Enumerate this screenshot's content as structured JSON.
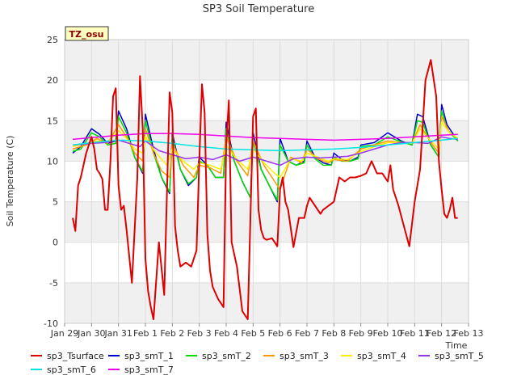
{
  "chart_data": {
    "type": "line",
    "title": "SP3 Soil Temperature",
    "xlabel": "Time",
    "ylabel": "Soil Temperature (C)",
    "badge": "TZ_osu",
    "ylim": [
      -10,
      25
    ],
    "xlim": [
      0,
      15
    ],
    "yticks": [
      -10,
      -5,
      0,
      5,
      10,
      15,
      20,
      25
    ],
    "xticks": [
      {
        "v": 0,
        "label": "Jan 29"
      },
      {
        "v": 1,
        "label": "Jan 30"
      },
      {
        "v": 2,
        "label": "Jan 31"
      },
      {
        "v": 3,
        "label": "Feb 1"
      },
      {
        "v": 4,
        "label": "Feb 2"
      },
      {
        "v": 5,
        "label": "Feb 3"
      },
      {
        "v": 6,
        "label": "Feb 4"
      },
      {
        "v": 7,
        "label": "Feb 5"
      },
      {
        "v": 8,
        "label": "Feb 6"
      },
      {
        "v": 9,
        "label": "Feb 7"
      },
      {
        "v": 10,
        "label": "Feb 8"
      },
      {
        "v": 11,
        "label": "Feb 9"
      },
      {
        "v": 12,
        "label": "Feb 10"
      },
      {
        "v": 13,
        "label": "Feb 11"
      },
      {
        "v": 14,
        "label": "Feb 12"
      },
      {
        "v": 15,
        "label": "Feb 13"
      }
    ],
    "grid": true,
    "legend_position": "bottom",
    "series": [
      {
        "name": "sp3_Tsurface",
        "color": "#dd0000",
        "width": 2,
        "x": [
          0.3,
          0.4,
          0.5,
          0.6,
          0.8,
          1.0,
          1.1,
          1.2,
          1.3,
          1.4,
          1.5,
          1.6,
          1.7,
          1.8,
          1.9,
          2.0,
          2.1,
          2.2,
          2.3,
          2.5,
          2.7,
          2.8,
          2.9,
          3.0,
          3.1,
          3.2,
          3.3,
          3.5,
          3.7,
          3.9,
          4.0,
          4.1,
          4.2,
          4.3,
          4.5,
          4.7,
          4.9,
          5.0,
          5.1,
          5.2,
          5.3,
          5.4,
          5.5,
          5.7,
          5.9,
          6.0,
          6.1,
          6.2,
          6.4,
          6.6,
          6.8,
          7.0,
          7.1,
          7.2,
          7.3,
          7.4,
          7.5,
          7.7,
          7.9,
          8.0,
          8.1,
          8.2,
          8.3,
          8.5,
          8.7,
          8.9,
          9.0,
          9.1,
          9.3,
          9.5,
          9.6,
          9.8,
          10.0,
          10.2,
          10.4,
          10.6,
          10.8,
          11.0,
          11.2,
          11.4,
          11.6,
          11.8,
          12.0,
          12.1,
          12.2,
          12.4,
          12.6,
          12.8,
          13.0,
          13.2,
          13.4,
          13.6,
          13.8,
          13.9,
          14.0,
          14.1,
          14.2,
          14.3,
          14.4,
          14.5,
          14.6
        ],
        "y": [
          3.0,
          1.4,
          7.0,
          8.0,
          11.0,
          13.0,
          11.5,
          9.0,
          8.5,
          7.8,
          4.0,
          4.0,
          10.0,
          18.0,
          19.0,
          7.0,
          4.0,
          4.5,
          1.5,
          -5.0,
          8.0,
          20.5,
          14.0,
          -2.0,
          -6.0,
          -8.0,
          -9.5,
          0.0,
          -6.5,
          18.5,
          16.0,
          2.0,
          -1.0,
          -3.0,
          -2.5,
          -3.0,
          -1.0,
          10.0,
          19.5,
          16.0,
          1.0,
          -3.5,
          -5.5,
          -7.0,
          -8.0,
          12.0,
          17.5,
          0.0,
          -3.0,
          -8.5,
          -9.5,
          15.5,
          16.5,
          4.0,
          1.5,
          0.5,
          0.3,
          0.5,
          -0.5,
          6.5,
          8.0,
          5.0,
          4.0,
          -0.6,
          3.0,
          3.0,
          4.5,
          5.5,
          4.5,
          3.5,
          4.0,
          4.5,
          5.0,
          8.0,
          7.5,
          8.0,
          8.0,
          8.2,
          8.5,
          10.0,
          8.5,
          8.5,
          7.5,
          9.5,
          6.5,
          4.5,
          2.0,
          -0.5,
          5.0,
          9.0,
          20.0,
          22.5,
          18.0,
          10.0,
          6.5,
          3.5,
          3.0,
          4.0,
          5.5,
          3.0,
          3.0
        ]
      },
      {
        "name": "sp3_smT_1",
        "color": "#0000cc",
        "width": 1.5,
        "x": [
          0.3,
          0.6,
          1.0,
          1.3,
          1.6,
          1.9,
          2.0,
          2.3,
          2.6,
          2.9,
          3.0,
          3.3,
          3.6,
          3.9,
          4.0,
          4.3,
          4.6,
          4.9,
          5.0,
          5.3,
          5.6,
          5.9,
          6.0,
          6.3,
          6.6,
          6.9,
          7.0,
          7.3,
          7.6,
          7.9,
          8.0,
          8.3,
          8.6,
          8.9,
          9.0,
          9.3,
          9.6,
          9.9,
          10.0,
          10.3,
          10.6,
          10.9,
          11.0,
          11.5,
          12.0,
          12.5,
          12.9,
          13.1,
          13.3,
          13.6,
          13.9,
          14.0,
          14.2,
          14.4,
          14.6
        ],
        "y": [
          11.0,
          11.8,
          14.0,
          13.3,
          12.2,
          12.5,
          16.2,
          14.0,
          10.5,
          8.5,
          15.8,
          11.5,
          8.0,
          6.0,
          13.5,
          9.0,
          7.0,
          8.0,
          10.5,
          9.5,
          8.0,
          8.0,
          14.8,
          10.0,
          7.5,
          5.5,
          13.5,
          9.0,
          7.0,
          5.0,
          12.8,
          10.0,
          9.5,
          10.0,
          12.5,
          10.5,
          9.8,
          9.5,
          11.0,
          10.2,
          10.0,
          10.5,
          12.0,
          12.3,
          13.5,
          12.5,
          12.0,
          15.8,
          15.5,
          12.0,
          10.5,
          17.0,
          14.5,
          13.5,
          12.5
        ]
      },
      {
        "name": "sp3_smT_2",
        "color": "#00dd00",
        "width": 1.5,
        "x": [
          0.3,
          0.6,
          1.0,
          1.3,
          1.6,
          1.9,
          2.0,
          2.3,
          2.6,
          2.9,
          3.0,
          3.3,
          3.6,
          3.9,
          4.0,
          4.3,
          4.6,
          4.9,
          5.0,
          5.3,
          5.6,
          5.9,
          6.0,
          6.3,
          6.6,
          6.9,
          7.0,
          7.3,
          7.6,
          7.9,
          8.0,
          8.3,
          8.6,
          8.9,
          9.0,
          9.3,
          9.6,
          9.9,
          10.0,
          10.3,
          10.6,
          10.9,
          11.0,
          11.5,
          12.0,
          12.5,
          12.9,
          13.1,
          13.3,
          13.6,
          13.9,
          14.0,
          14.2,
          14.4,
          14.6
        ],
        "y": [
          11.2,
          11.5,
          13.5,
          13.0,
          12.0,
          12.2,
          15.5,
          13.5,
          10.5,
          8.7,
          15.0,
          11.0,
          8.0,
          6.2,
          13.0,
          9.0,
          7.2,
          8.0,
          10.0,
          9.5,
          8.0,
          8.0,
          14.0,
          10.0,
          7.5,
          5.5,
          12.5,
          9.0,
          7.0,
          5.2,
          12.0,
          10.0,
          9.5,
          9.8,
          12.0,
          10.3,
          9.5,
          9.5,
          10.5,
          10.0,
          10.0,
          10.3,
          11.8,
          12.0,
          13.0,
          12.4,
          12.0,
          15.0,
          14.8,
          12.0,
          10.5,
          16.2,
          14.0,
          13.2,
          12.5
        ]
      },
      {
        "name": "sp3_smT_3",
        "color": "#ff9900",
        "width": 1.5,
        "x": [
          0.3,
          0.8,
          1.2,
          1.6,
          2.0,
          2.3,
          2.6,
          2.9,
          3.0,
          3.3,
          3.6,
          3.9,
          4.0,
          4.4,
          4.8,
          5.0,
          5.4,
          5.8,
          6.0,
          6.4,
          6.8,
          7.0,
          7.4,
          7.8,
          8.0,
          8.4,
          8.8,
          9.0,
          9.4,
          9.8,
          10.0,
          10.5,
          11.0,
          11.5,
          12.0,
          12.5,
          12.9,
          13.2,
          13.6,
          13.9,
          14.0,
          14.3,
          14.6
        ],
        "y": [
          11.5,
          12.0,
          12.8,
          12.2,
          14.5,
          13.0,
          11.0,
          10.0,
          14.0,
          11.0,
          8.8,
          8.0,
          12.2,
          9.5,
          8.0,
          9.5,
          9.2,
          8.5,
          13.0,
          10.0,
          8.2,
          12.5,
          9.5,
          7.5,
          6.5,
          10.5,
          9.8,
          11.5,
          10.3,
          9.8,
          10.2,
          10.0,
          11.5,
          12.0,
          12.5,
          12.3,
          12.2,
          14.5,
          12.3,
          11.0,
          15.5,
          13.5,
          12.8
        ]
      },
      {
        "name": "sp3_smT_4",
        "color": "#ffee00",
        "width": 1.5,
        "x": [
          0.3,
          0.8,
          1.2,
          1.6,
          2.0,
          2.3,
          2.6,
          2.9,
          3.0,
          3.4,
          3.8,
          4.0,
          4.4,
          4.8,
          5.0,
          5.4,
          5.8,
          6.0,
          6.4,
          6.8,
          7.0,
          7.4,
          7.8,
          8.0,
          8.4,
          8.8,
          9.0,
          9.4,
          9.8,
          10.0,
          10.5,
          11.0,
          11.5,
          12.0,
          12.5,
          12.9,
          13.2,
          13.6,
          13.9,
          14.0,
          14.3,
          14.6
        ],
        "y": [
          11.8,
          12.2,
          12.5,
          12.3,
          13.8,
          12.8,
          11.5,
          11.0,
          13.0,
          11.0,
          9.5,
          11.5,
          10.0,
          9.0,
          9.8,
          9.5,
          9.0,
          12.0,
          10.2,
          9.0,
          11.5,
          9.8,
          8.5,
          8.0,
          10.3,
          10.0,
          11.0,
          10.5,
          10.0,
          10.3,
          10.2,
          11.2,
          11.8,
          12.3,
          12.3,
          12.2,
          14.0,
          12.5,
          11.5,
          14.8,
          13.5,
          12.8
        ]
      },
      {
        "name": "sp3_smT_5",
        "color": "#9933ee",
        "width": 1.5,
        "x": [
          0.3,
          1.0,
          1.5,
          2.0,
          2.4,
          2.8,
          3.0,
          3.5,
          4.0,
          4.5,
          5.0,
          5.5,
          6.0,
          6.5,
          7.0,
          7.5,
          8.0,
          8.5,
          9.0,
          9.5,
          10.0,
          10.5,
          11.0,
          11.5,
          12.0,
          12.5,
          13.0,
          13.5,
          14.0,
          14.3,
          14.6
        ],
        "y": [
          12.0,
          12.2,
          12.3,
          12.6,
          12.2,
          11.8,
          12.5,
          11.3,
          10.8,
          10.3,
          10.5,
          10.2,
          10.8,
          10.0,
          10.5,
          10.0,
          9.5,
          10.3,
          10.5,
          10.4,
          10.5,
          10.6,
          11.0,
          11.5,
          12.0,
          12.3,
          12.3,
          12.2,
          13.0,
          12.8,
          12.7
        ]
      },
      {
        "name": "sp3_smT_6",
        "color": "#00e5e5",
        "width": 1.5,
        "x": [
          0.3,
          1.0,
          2.0,
          3.0,
          4.0,
          5.0,
          6.0,
          7.0,
          8.0,
          9.0,
          10.0,
          11.0,
          12.0,
          13.0,
          14.0,
          14.6
        ],
        "y": [
          12.0,
          12.3,
          12.6,
          12.5,
          12.2,
          11.8,
          11.5,
          11.4,
          11.3,
          11.4,
          11.5,
          11.7,
          12.0,
          12.3,
          12.6,
          12.8
        ]
      },
      {
        "name": "sp3_smT_7",
        "color": "#ee00ee",
        "width": 1.5,
        "x": [
          0.3,
          1.0,
          2.0,
          3.0,
          4.0,
          5.0,
          6.0,
          7.0,
          8.0,
          9.0,
          10.0,
          11.0,
          12.0,
          13.0,
          14.0,
          14.6
        ],
        "y": [
          12.7,
          12.9,
          13.2,
          13.4,
          13.4,
          13.3,
          13.1,
          12.9,
          12.8,
          12.7,
          12.6,
          12.7,
          12.8,
          13.0,
          13.2,
          13.3
        ]
      }
    ]
  }
}
